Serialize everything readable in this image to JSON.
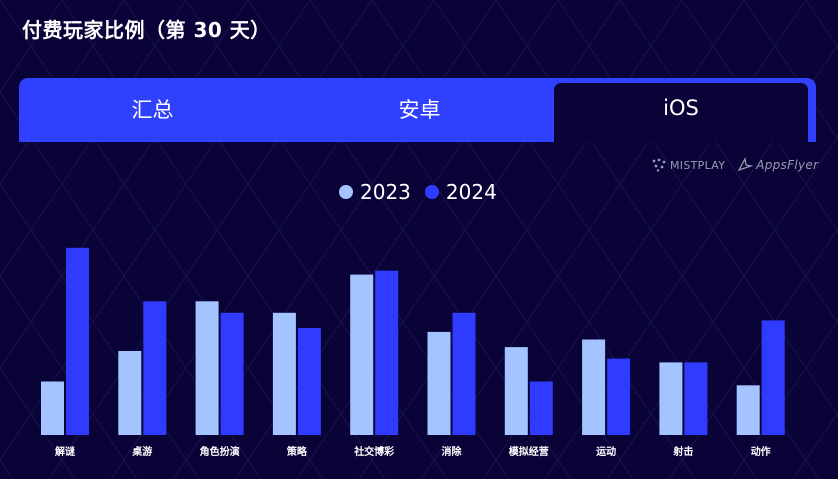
{
  "title": "付费玩家比例（第 30 天）",
  "tabs": [
    {
      "label": "汇总",
      "active": false
    },
    {
      "label": "安卓",
      "active": false
    },
    {
      "label": "iOS",
      "active": true
    }
  ],
  "brands": {
    "mistplay": "MISTPLAY",
    "appsflyer": "AppsFlyer"
  },
  "colors": {
    "background": "#0a0338",
    "tab_bar": "#3040ff",
    "series_2023": "#a4c4ff",
    "series_2024": "#2f3cff"
  },
  "chart_data": {
    "type": "bar",
    "categories": [
      "解谜",
      "桌游",
      "角色扮演",
      "策略",
      "社交博彩",
      "消除",
      "模拟经营",
      "运动",
      "射击",
      "动作"
    ],
    "series": [
      {
        "name": "2023",
        "color": "#a4c4ff",
        "values": [
          1.4,
          2.2,
          3.5,
          3.2,
          4.2,
          2.7,
          2.3,
          2.5,
          1.9,
          1.3
        ]
      },
      {
        "name": "2024",
        "color": "#2f3cff",
        "values": [
          4.9,
          3.5,
          3.2,
          2.8,
          4.3,
          3.2,
          1.4,
          2.0,
          1.9,
          3.0
        ]
      }
    ],
    "legend_position": "top-center",
    "show_value_axis": false,
    "show_grid": false
  }
}
